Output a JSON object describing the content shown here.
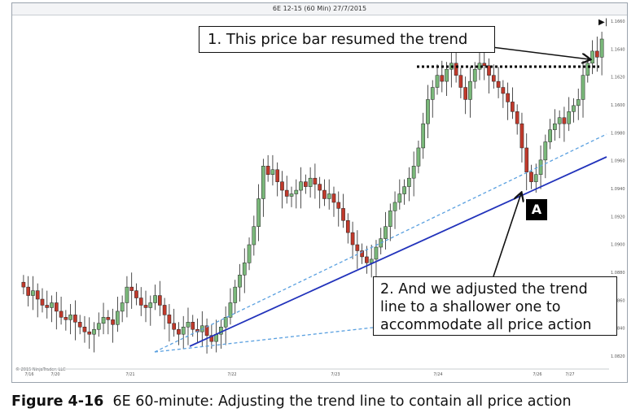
{
  "chart_data": {
    "type": "candlestick",
    "title": "6E 12-15 (60 Min) 27/7/2015",
    "x_tick_labels": [
      "7/16",
      "7/20",
      "7/21",
      "7/22",
      "7/23",
      "7/24",
      "7/26",
      "7/27"
    ],
    "y_tick_labels": [
      "1.1660",
      "1.1640",
      "1.1620",
      "1.1600",
      "1.0980",
      "1.0960",
      "1.0940",
      "1.0920",
      "1.0900",
      "1.0880",
      "1.0860",
      "1.0840",
      "1.0820"
    ],
    "up_color": "#7ab87a",
    "down_color": "#c0392b",
    "series_closes": [
      1.0875,
      1.0868,
      1.0872,
      1.0865,
      1.086,
      1.0858,
      1.0862,
      1.0855,
      1.085,
      1.0848,
      1.0852,
      1.0846,
      1.0842,
      1.0838,
      1.0836,
      1.084,
      1.0845,
      1.085,
      1.0848,
      1.0844,
      1.0855,
      1.0862,
      1.0875,
      1.0872,
      1.0866,
      1.086,
      1.0858,
      1.0862,
      1.0868,
      1.086,
      1.0852,
      1.0845,
      1.084,
      1.0836,
      1.0842,
      1.0846,
      1.084,
      1.0838,
      1.0843,
      1.0835,
      1.083,
      1.0836,
      1.0842,
      1.085,
      1.0862,
      1.0875,
      1.0885,
      1.0895,
      1.091,
      1.0925,
      1.0948,
      1.0975,
      1.0968,
      1.0972,
      1.0962,
      1.0955,
      1.095,
      1.0952,
      1.0955,
      1.0962,
      1.0958,
      1.0965,
      1.096,
      1.0955,
      1.0948,
      1.0952,
      1.0945,
      1.094,
      1.093,
      1.092,
      1.091,
      1.0905,
      1.09,
      1.0895,
      1.0898,
      1.0908,
      1.0915,
      1.0925,
      1.0938,
      1.0945,
      1.0952,
      1.0958,
      1.0965,
      1.0975,
      1.099,
      1.101,
      1.103,
      1.104,
      1.105,
      1.1045,
      1.1055,
      1.106,
      1.105,
      1.104,
      1.103,
      1.1045,
      1.1055,
      1.106,
      1.1058,
      1.105,
      1.1045,
      1.104,
      1.1035,
      1.1028,
      1.102,
      1.101,
      1.099,
      1.097,
      1.0962,
      1.0968,
      1.098,
      1.0995,
      1.1005,
      1.101,
      1.1015,
      1.101,
      1.102,
      1.1025,
      1.103,
      1.105,
      1.106,
      1.107,
      1.1065,
      1.108
    ],
    "annotations": [
      "1. This price bar resumed the trend",
      "2. And we adjusted the trend line to a shallower one to accommodate all price action",
      "A"
    ]
  },
  "watermark": "© 2015 NinjaTrader, LLC",
  "caption": {
    "label": "Figure 4-16",
    "text": "6E 60-minute: Adjusting the trend line to contain all price action"
  },
  "colors": {
    "steep_trendline": "#2233bb",
    "shallow_trendline": "#5aa0e0",
    "resistance_dots": "#000000"
  }
}
